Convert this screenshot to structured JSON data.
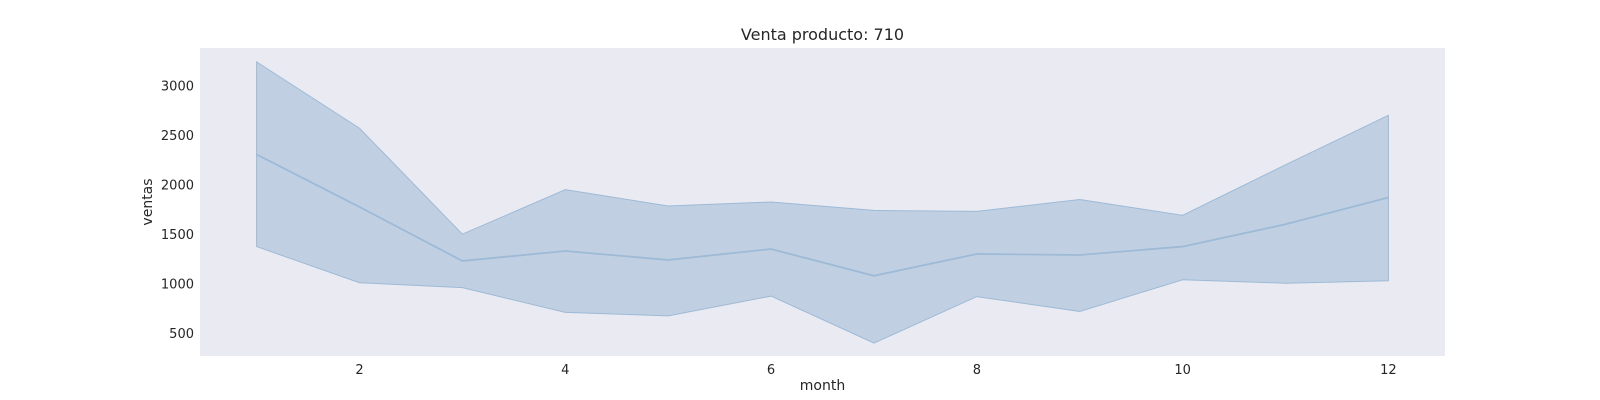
{
  "chart_data": {
    "type": "area",
    "title": "Venta producto: 710",
    "xlabel": "month",
    "ylabel": "ventas",
    "x": [
      1,
      2,
      3,
      4,
      5,
      6,
      7,
      8,
      9,
      10,
      11,
      12
    ],
    "xlim": [
      0.45,
      12.55
    ],
    "ylim": [
      270,
      3380
    ],
    "xticks": [
      2,
      4,
      6,
      8,
      10,
      12
    ],
    "yticks": [
      500,
      1000,
      1500,
      2000,
      2500,
      3000
    ],
    "grid": false,
    "series": [
      {
        "values": [
          2305,
          1775,
          1230,
          1330,
          1240,
          1350,
          1080,
          1300,
          1290,
          1375,
          1600,
          1870
        ],
        "upper": [
          3240,
          2570,
          1500,
          1950,
          1785,
          1825,
          1740,
          1730,
          1850,
          1690,
          2200,
          2700
        ],
        "lower": [
          1375,
          1010,
          960,
          710,
          675,
          875,
          400,
          870,
          720,
          1040,
          1005,
          1030
        ],
        "color": "#9dbad6"
      }
    ],
    "plot_background": "#eaeaf2"
  }
}
